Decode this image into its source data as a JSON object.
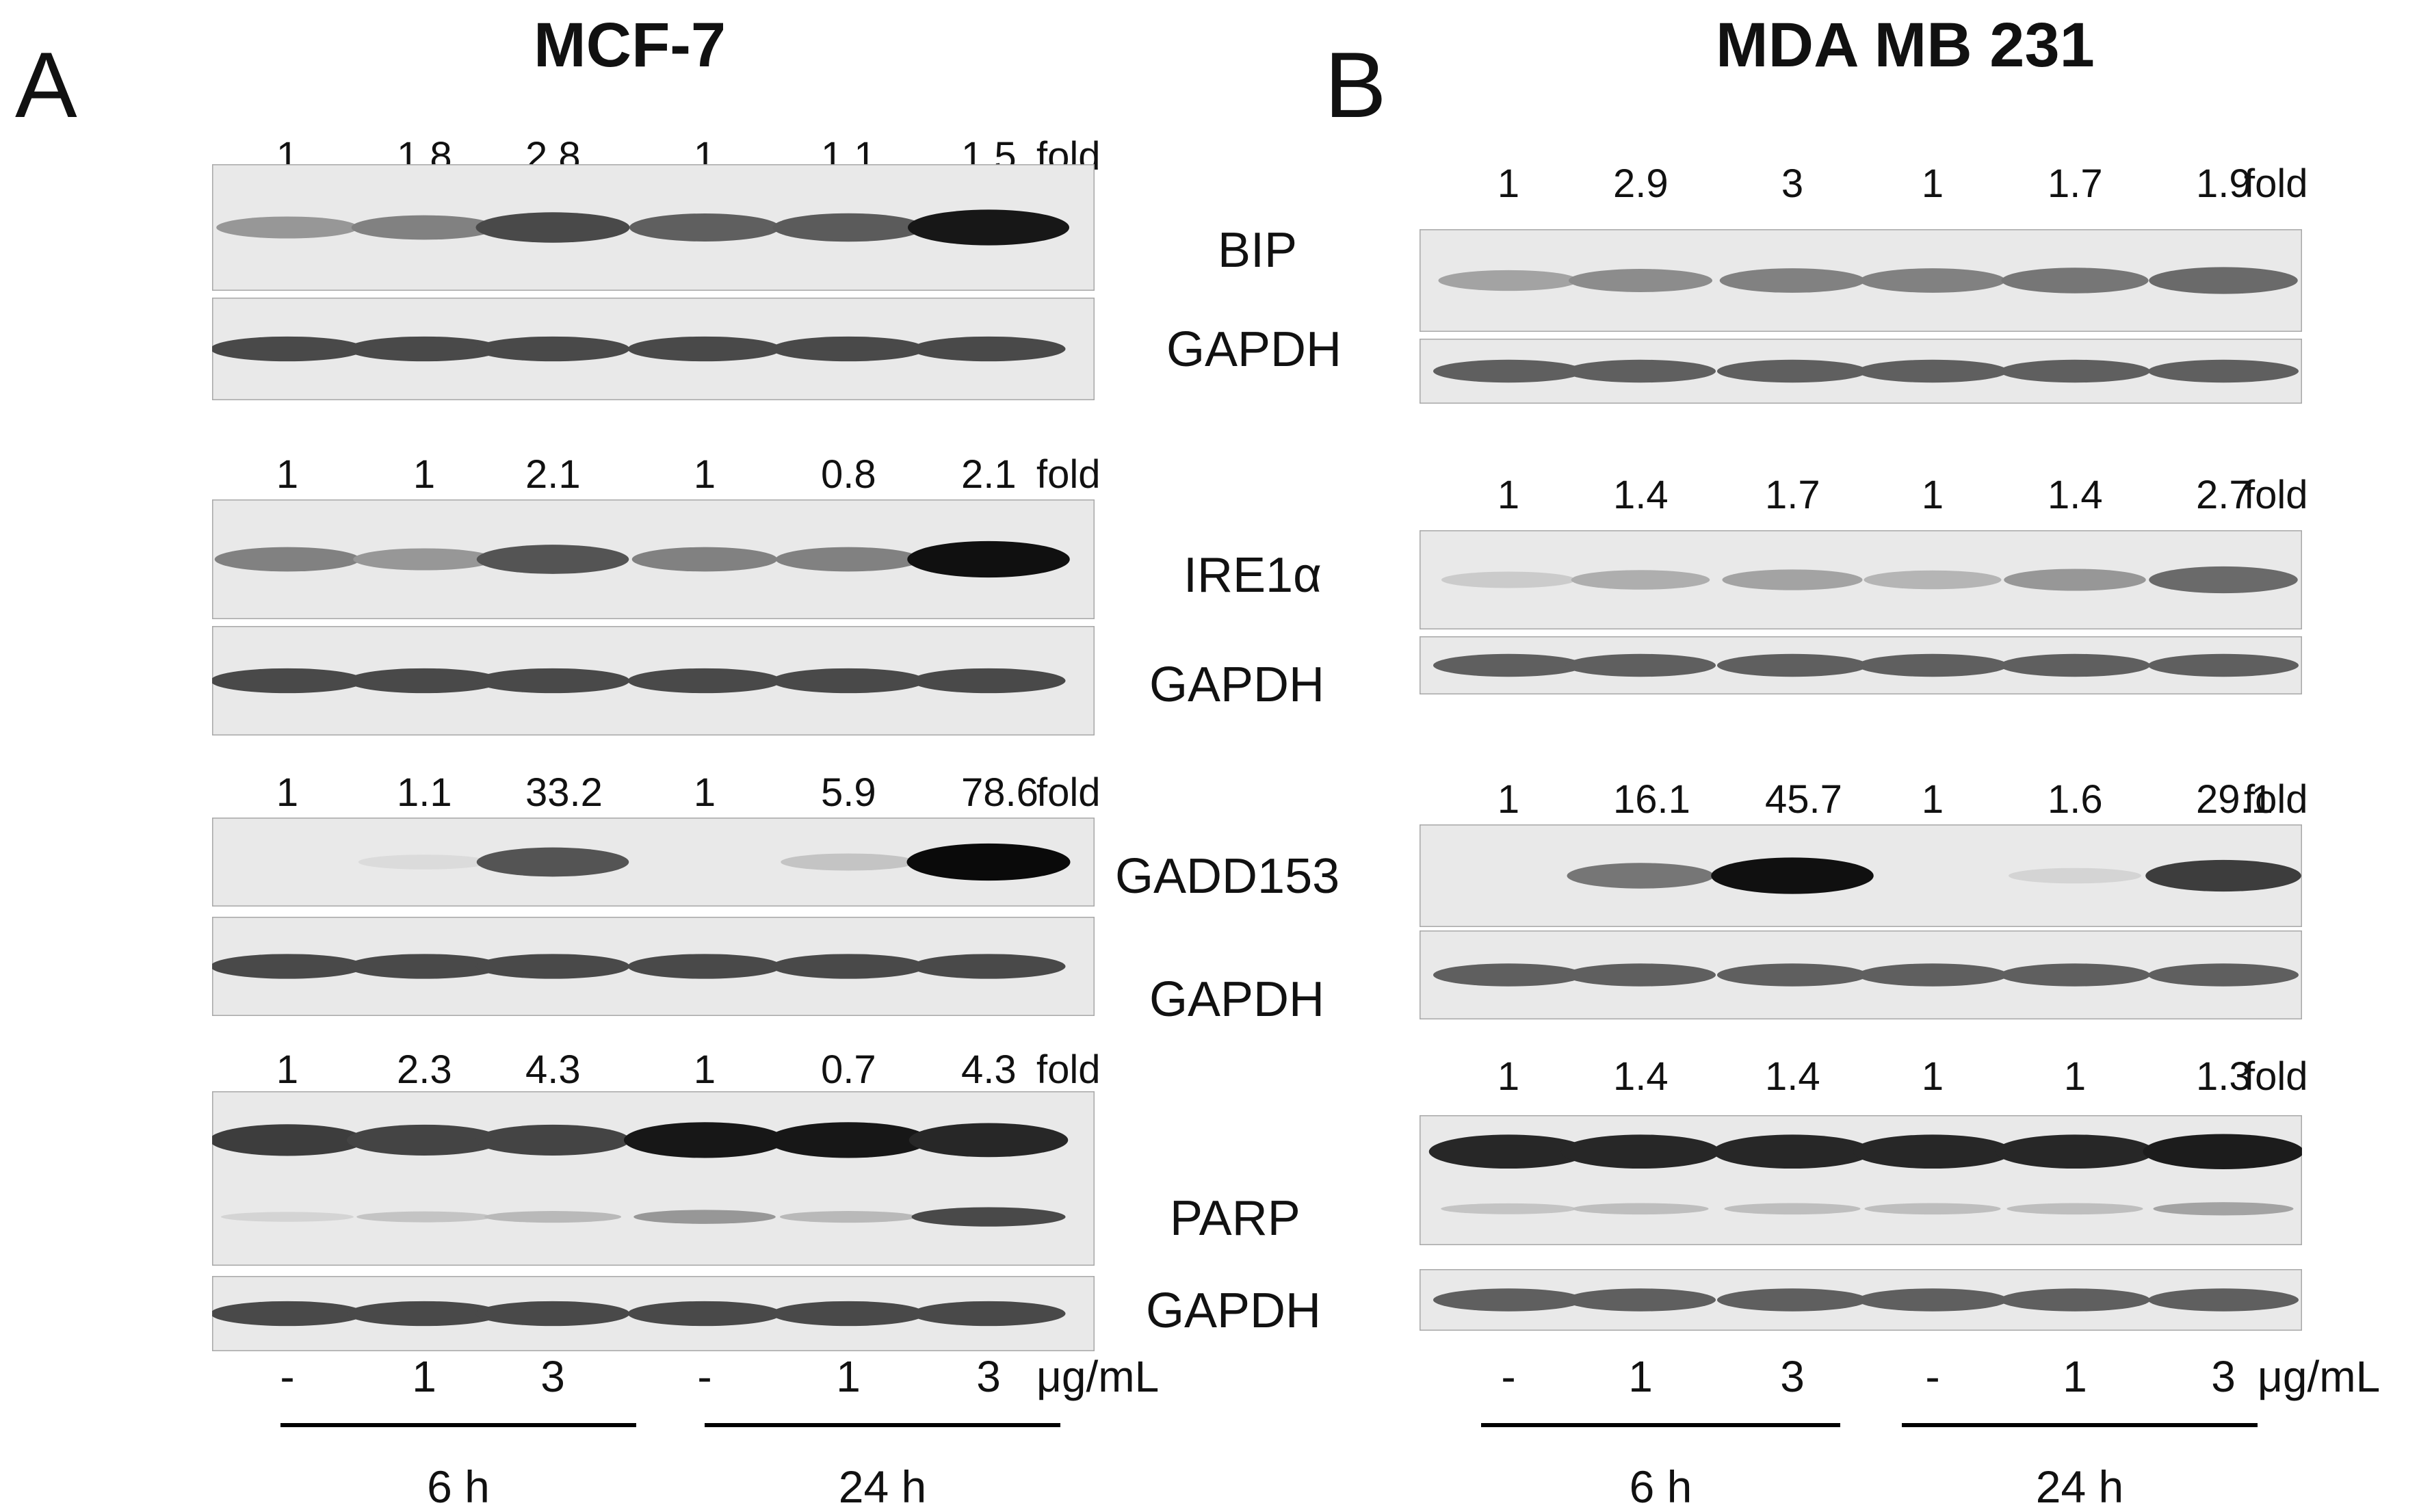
{
  "panels": [
    {
      "letter": "A",
      "cell_line": "MCF-7",
      "blocks": [
        {
          "protein": "BIP",
          "fold": [
            "1",
            "1.8",
            "2.8",
            "1",
            "1.1",
            "1.5"
          ],
          "fold_unit": "fold",
          "loading_control": "GAPDH"
        },
        {
          "protein": "IRE1α",
          "fold": [
            "1",
            "1",
            "2.1",
            "1",
            "0.8",
            "2.1"
          ],
          "fold_unit": "fold",
          "loading_control": "GAPDH"
        },
        {
          "protein": "GADD153",
          "fold": [
            "1",
            "1.1",
            "33.2",
            "1",
            "5.9",
            "78.6"
          ],
          "fold_unit": "fold",
          "loading_control": "GAPDH"
        },
        {
          "protein": "PARP",
          "fold": [
            "1",
            "2.3",
            "4.3",
            "1",
            "0.7",
            "4.3"
          ],
          "fold_unit": "fold",
          "loading_control": "GAPDH"
        }
      ],
      "doses": [
        "-",
        "1",
        "3",
        "-",
        "1",
        "3"
      ],
      "dose_unit": "μg/mL",
      "times": [
        "6 h",
        "24 h"
      ]
    },
    {
      "letter": "B",
      "cell_line": "MDA MB 231",
      "blocks": [
        {
          "protein": "BIP",
          "fold": [
            "1",
            "2.9",
            "3",
            "1",
            "1.7",
            "1.9"
          ],
          "fold_unit": "fold",
          "loading_control": "GAPDH"
        },
        {
          "protein": "IRE1α",
          "fold": [
            "1",
            "1.4",
            "1.7",
            "1",
            "1.4",
            "2.7"
          ],
          "fold_unit": "fold",
          "loading_control": "GAPDH"
        },
        {
          "protein": "GADD153",
          "fold": [
            "1",
            "16.1",
            "45.7",
            "1",
            "1.6",
            "29.1"
          ],
          "fold_unit": "fold",
          "loading_control": "GAPDH"
        },
        {
          "protein": "PARP",
          "fold": [
            "1",
            "1.4",
            "1.4",
            "1",
            "1",
            "1.3"
          ],
          "fold_unit": "fold",
          "loading_control": "GAPDH"
        }
      ],
      "doses": [
        "-",
        "1",
        "3",
        "-",
        "1",
        "3"
      ],
      "dose_unit": "μg/mL",
      "times": [
        "6 h",
        "24 h"
      ]
    }
  ],
  "band_intensity": {
    "A": {
      "BIP": [
        0.35,
        0.45,
        0.7,
        0.6,
        0.62,
        0.92
      ],
      "IRE1α": [
        0.45,
        0.35,
        0.65,
        0.45,
        0.45,
        0.95
      ],
      "GADD153": [
        0.0,
        0.05,
        0.65,
        0.0,
        0.15,
        0.98
      ],
      "PARP": [
        0.75,
        0.72,
        0.72,
        0.92,
        0.92,
        0.85
      ],
      "PARP_cleaved": [
        0.08,
        0.15,
        0.2,
        0.35,
        0.2,
        0.7
      ],
      "GAPDH": [
        0.7,
        0.7,
        0.7,
        0.7,
        0.7,
        0.7
      ]
    },
    "B": {
      "BIP": [
        0.3,
        0.4,
        0.45,
        0.45,
        0.5,
        0.55
      ],
      "IRE1α": [
        0.12,
        0.25,
        0.3,
        0.22,
        0.35,
        0.55
      ],
      "GADD153": [
        0.0,
        0.5,
        0.95,
        0.0,
        0.08,
        0.75
      ],
      "PARP": [
        0.85,
        0.85,
        0.85,
        0.85,
        0.85,
        0.9
      ],
      "PARP_cleaved": [
        0.15,
        0.18,
        0.18,
        0.18,
        0.18,
        0.3
      ],
      "GAPDH": [
        0.6,
        0.6,
        0.6,
        0.6,
        0.6,
        0.6
      ]
    }
  }
}
